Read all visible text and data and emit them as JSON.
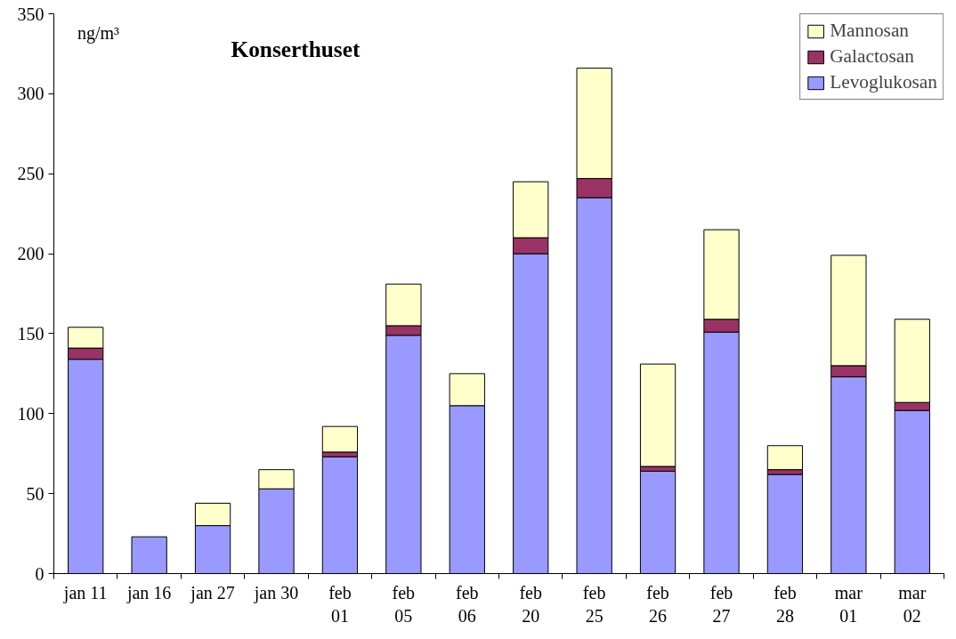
{
  "chart_data": {
    "type": "bar",
    "stacked": true,
    "title": "Konserthuset",
    "annotations": [
      "ng/m³"
    ],
    "categories": [
      "jan 11",
      "jan 16",
      "jan 27",
      "jan 30",
      "feb\n01",
      "feb\n05",
      "feb\n06",
      "feb\n20",
      "feb\n25",
      "feb\n26",
      "feb\n27",
      "feb\n28",
      "mar\n01",
      "mar\n02"
    ],
    "series": [
      {
        "name": "Levoglukosan",
        "color": "#9999ff",
        "values": [
          134,
          23,
          30,
          53,
          73,
          149,
          105,
          200,
          235,
          64,
          151,
          62,
          123,
          102
        ]
      },
      {
        "name": "Galactosan",
        "color": "#993366",
        "values": [
          7,
          null,
          null,
          null,
          3,
          6,
          null,
          10,
          12,
          3,
          8,
          3,
          7,
          5
        ]
      },
      {
        "name": "Mannosan",
        "color": "#ffffcc",
        "values": [
          13,
          null,
          14,
          12,
          16,
          26,
          20,
          35,
          69,
          64,
          56,
          15,
          69,
          52
        ]
      }
    ],
    "ylim": [
      0,
      350
    ],
    "yticks": [
      0,
      50,
      100,
      150,
      200,
      250,
      300,
      350
    ],
    "grid": false,
    "legend": "top right"
  }
}
